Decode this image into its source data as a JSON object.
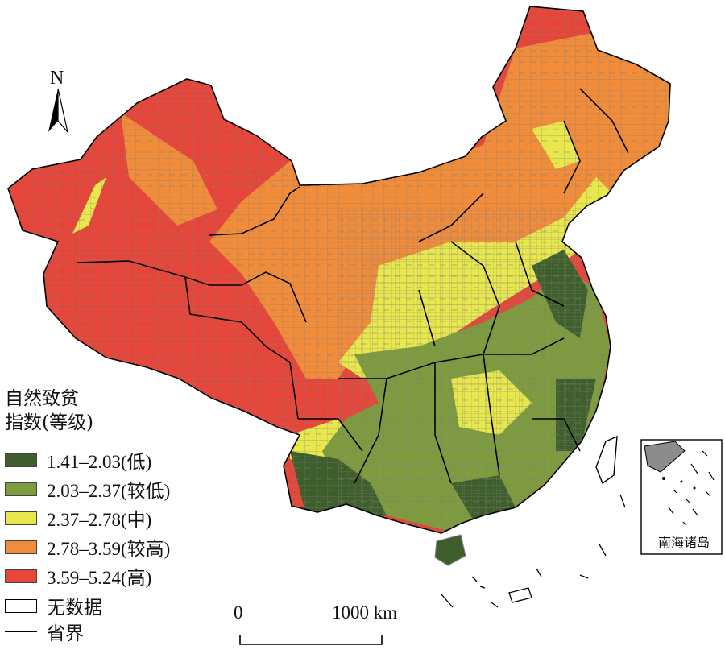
{
  "legend": {
    "title_line1": "自然致贫",
    "title_line2": "指数(等级)",
    "classes": [
      {
        "label": "1.41–2.03(低)",
        "color": "#3e5e2b"
      },
      {
        "label": "2.03–2.37(较低)",
        "color": "#7e9c3c"
      },
      {
        "label": "2.37–2.78(中)",
        "color": "#e8e84c"
      },
      {
        "label": "2.78–3.59(较高)",
        "color": "#f08c3a"
      },
      {
        "label": "3.59–5.24(高)",
        "color": "#e6463a"
      }
    ],
    "no_data": "无数据",
    "boundary": "省界"
  },
  "scale_bar": {
    "zero": "0",
    "max": "1000 km"
  },
  "north_arrow": {
    "label": "N"
  },
  "inset": {
    "label": "南海诸岛"
  },
  "colors": {
    "county_border": "#7f7f7f",
    "province_border": "#000000",
    "inset_land": "#8c8c8c"
  }
}
